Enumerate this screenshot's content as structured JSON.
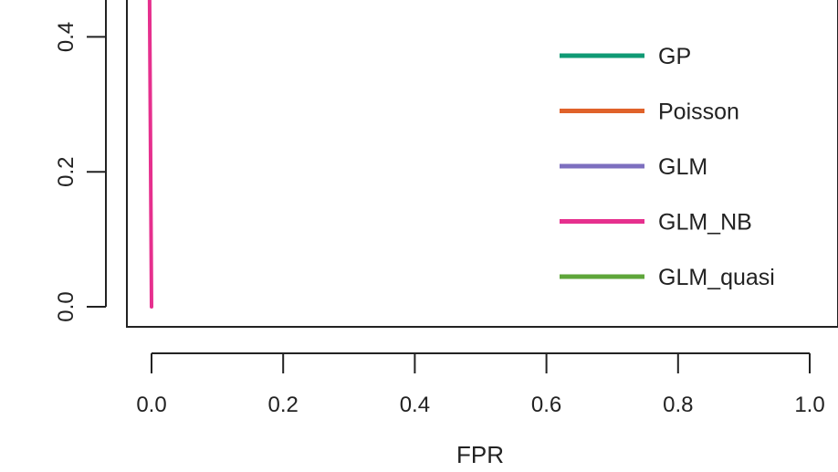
{
  "chart_data": {
    "type": "line",
    "xlabel": "FPR",
    "ylabel": "",
    "xlim": [
      0.0,
      1.0
    ],
    "ylim": [
      0.0,
      1.0
    ],
    "x_ticks": [
      "0.0",
      "0.2",
      "0.4",
      "0.6",
      "0.8",
      "1.0"
    ],
    "y_ticks": [
      "0.0",
      "0.2",
      "0.4"
    ],
    "grid": false,
    "legend_position": "right",
    "series": [
      {
        "name": "GP",
        "color": "#0f9a74",
        "points": []
      },
      {
        "name": "Poisson",
        "color": "#e0622a",
        "points": []
      },
      {
        "name": "GLM",
        "color": "#7d6fbf",
        "points": []
      },
      {
        "name": "GLM_NB",
        "color": "#e6308e",
        "points": [
          [
            0.0,
            0.0
          ],
          [
            -0.003,
            0.46
          ]
        ]
      },
      {
        "name": "GLM_quasi",
        "color": "#5ea63a",
        "points": []
      }
    ]
  }
}
